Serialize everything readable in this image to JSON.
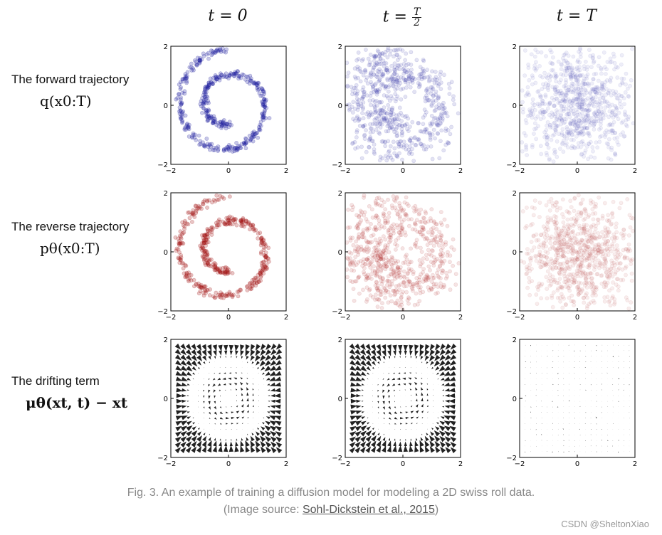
{
  "columns": [
    {
      "label": "t = 0"
    },
    {
      "label": "t = T/2",
      "t": "t = ",
      "frac_num": "T",
      "frac_den": "2"
    },
    {
      "label": "t = T"
    }
  ],
  "rows": [
    {
      "name": "The forward trajectory",
      "math": "q(x0:T)",
      "color": "#1f1f9e"
    },
    {
      "name": "The reverse trajectory",
      "math": "pθ(x0:T)",
      "color": "#a31616"
    },
    {
      "name": "The drifting term",
      "math": "μθ(xt, t) − xt",
      "color": "#222222"
    }
  ],
  "axis": {
    "xticks": [
      "−2",
      "0",
      "2"
    ],
    "yticks": [
      "2",
      "0",
      "−2"
    ]
  },
  "caption": {
    "line1": "Fig. 3. An example of training a diffusion model for modeling a 2D swiss roll data.",
    "line2_prefix": "(Image source: ",
    "link_text": "Sohl-Dickstein et al., 2015",
    "line2_suffix": ")"
  },
  "watermark": "CSDN @SheltonXiao",
  "chart_data": {
    "type": "scatter",
    "title": "",
    "xlim": [
      -2,
      2
    ],
    "ylim": [
      -2,
      2
    ],
    "panels": [
      {
        "row": "forward",
        "column": "t = 0",
        "description": "swiss roll spiral, tight"
      },
      {
        "row": "forward",
        "column": "t = T/2",
        "description": "noisy spiral"
      },
      {
        "row": "forward",
        "column": "t = T",
        "description": "uniform Gaussian noise"
      },
      {
        "row": "reverse",
        "column": "t = 0",
        "description": "recovered spiral"
      },
      {
        "row": "reverse",
        "column": "t = T/2",
        "description": "noisy spiral"
      },
      {
        "row": "reverse",
        "column": "t = T",
        "description": "Gaussian noise"
      },
      {
        "row": "drift",
        "column": "t = 0",
        "description": "vector field"
      },
      {
        "row": "drift",
        "column": "t = T/2",
        "description": "vector field"
      },
      {
        "row": "drift",
        "column": "t = T",
        "description": "weak vector field"
      }
    ]
  }
}
